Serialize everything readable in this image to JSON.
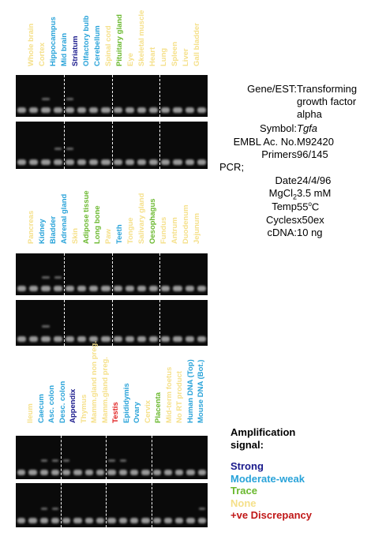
{
  "tissue_groups": [
    {
      "labels": [
        {
          "text": "Whole brain",
          "color": "#f5e08a"
        },
        {
          "text": "Cortex",
          "color": "#f5e08a"
        },
        {
          "text": "Hippocampus",
          "color": "#29a3d9"
        },
        {
          "text": "Mid brain",
          "color": "#29a3d9"
        },
        {
          "text": "Striatum",
          "color": "#1a1a8c"
        },
        {
          "text": "Olfactory bulb",
          "color": "#29a3d9"
        },
        {
          "text": "Cerebellum",
          "color": "#29a3d9"
        },
        {
          "text": "Spinal cord",
          "color": "#f5e08a"
        },
        {
          "text": "Pituitary gland",
          "color": "#6ab82e"
        },
        {
          "text": "Eye",
          "color": "#f5e08a"
        },
        {
          "text": "Skeletal muscle",
          "color": "#f5e08a"
        },
        {
          "text": "Heart",
          "color": "#f5e08a"
        },
        {
          "text": "Lung",
          "color": "#f5e08a"
        },
        {
          "text": "Spleen",
          "color": "#f5e08a"
        },
        {
          "text": "Liver",
          "color": "#f5e08a"
        },
        {
          "text": "Gall bladder",
          "color": "#f5e08a"
        }
      ]
    },
    {
      "labels": [
        {
          "text": "Pancreas",
          "color": "#f5e08a"
        },
        {
          "text": "Kidney",
          "color": "#29a3d9"
        },
        {
          "text": "Bladder",
          "color": "#29a3d9"
        },
        {
          "text": "Adrenal gland",
          "color": "#29a3d9"
        },
        {
          "text": "Skin",
          "color": "#f5e08a"
        },
        {
          "text": "Adipose tissue",
          "color": "#6ab82e"
        },
        {
          "text": "Long bone",
          "color": "#6ab82e"
        },
        {
          "text": "Paw",
          "color": "#f5e08a"
        },
        {
          "text": "Teeth",
          "color": "#29a3d9"
        },
        {
          "text": "Tongue",
          "color": "#f5e08a"
        },
        {
          "text": "Salivary gland",
          "color": "#f5e08a"
        },
        {
          "text": "Oesophagus",
          "color": "#6ab82e"
        },
        {
          "text": "Fundus",
          "color": "#f5e08a"
        },
        {
          "text": "Antrum",
          "color": "#f5e08a"
        },
        {
          "text": "Duodenum",
          "color": "#f5e08a"
        },
        {
          "text": "Jejunum",
          "color": "#f5e08a"
        }
      ]
    },
    {
      "labels": [
        {
          "text": "Ileum",
          "color": "#f5e08a"
        },
        {
          "text": "Caecum",
          "color": "#29a3d9"
        },
        {
          "text": "Asc. colon",
          "color": "#29a3d9"
        },
        {
          "text": "Desc. colon",
          "color": "#29a3d9"
        },
        {
          "text": "Appendix",
          "color": "#1a1a8c"
        },
        {
          "text": "Thymus",
          "color": "#f5e08a"
        },
        {
          "text": "Mamm.gland non preg.",
          "color": "#f5e08a"
        },
        {
          "text": "Mamm.gland preg.",
          "color": "#f5e08a"
        },
        {
          "text": "Testis",
          "color": "#e02020"
        },
        {
          "text": "Epididymis",
          "color": "#29a3d9"
        },
        {
          "text": "Ovary",
          "color": "#29a3d9"
        },
        {
          "text": "Cervix",
          "color": "#f5e08a"
        },
        {
          "text": "Placenta",
          "color": "#6ab82e"
        },
        {
          "text": "Mid-term foetus",
          "color": "#f5e08a"
        },
        {
          "text": "No RT product",
          "color": "#f5e08a"
        },
        {
          "text": "Human DNA (Top)",
          "color": "#29a3d9"
        },
        {
          "text": "Mouse DNA (Bot.)",
          "color": "#29a3d9"
        }
      ]
    }
  ],
  "info": {
    "gene_est_label": "Gene/EST:",
    "gene_est_value": [
      "Transforming",
      "growth factor",
      "alpha"
    ],
    "symbol_label": "Symbol:",
    "symbol_value": "Tgfa",
    "embl_label": "EMBL Ac. No.",
    "embl_value": "M92420",
    "primers_label": "Primers",
    "primers_value": "96/145",
    "pcr_label": "PCR;",
    "date_label": "Date",
    "date_value": "24/4/96",
    "mgcl_label": "MgCl",
    "mgcl_sub": "2",
    "mgcl_value": "3.5 mM",
    "temp_label": "Temp",
    "temp_value": "55",
    "temp_sup": "o",
    "temp_unit": "C",
    "cycles_label": "Cycles",
    "cycles_value": "x50ex",
    "cdna_label": "cDNA:",
    "cdna_value": "10 ng"
  },
  "legend": {
    "title_line1": "Amplification",
    "title_line2": "signal:",
    "items": [
      {
        "text": "Strong",
        "color": "#1a1a8c"
      },
      {
        "text": "Moderate-weak",
        "color": "#29a3d9"
      },
      {
        "text": "Trace",
        "color": "#6ab82e"
      },
      {
        "text": "None",
        "color": "#f5e08a"
      },
      {
        "text": "+ve Discrepancy",
        "color": "#c01818"
      }
    ]
  }
}
